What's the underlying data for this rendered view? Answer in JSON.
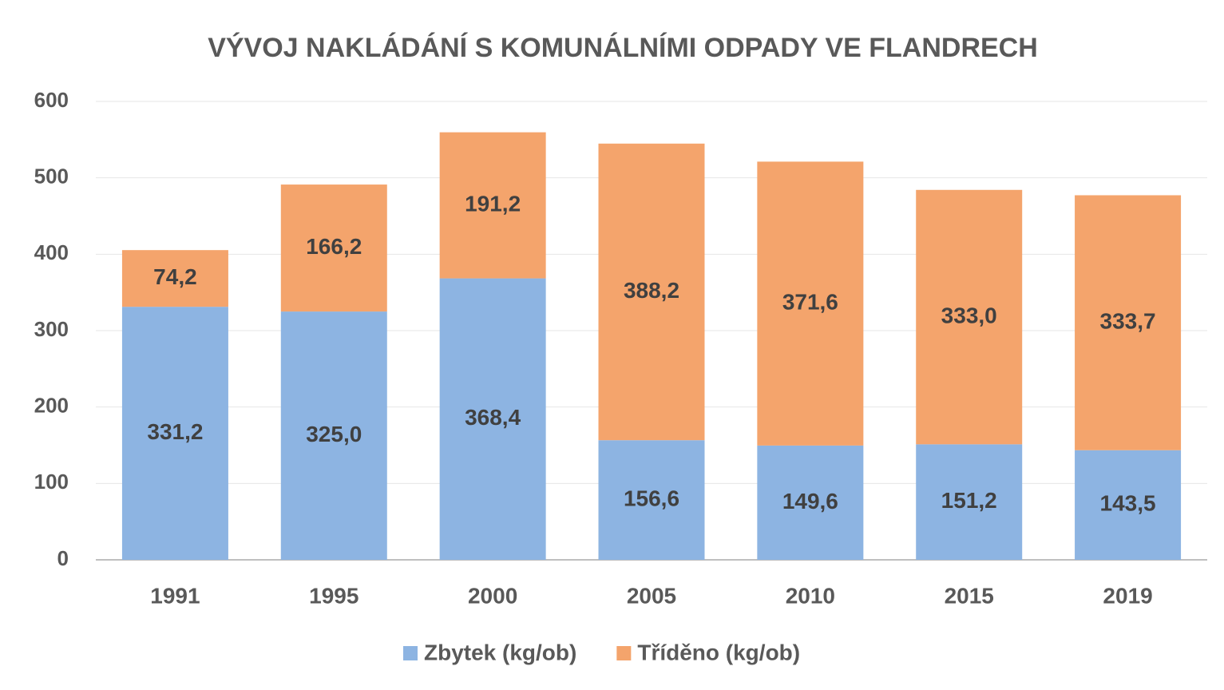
{
  "chart_data": {
    "type": "stacked_bar",
    "title": "VÝVOJ NAKLÁDÁNÍ S KOMUNÁLNÍMI ODPADY VE FLANDRECH",
    "categories": [
      "1991",
      "1995",
      "2000",
      "2005",
      "2010",
      "2015",
      "2019"
    ],
    "series": [
      {
        "name": "Zbytek (kg/ob)",
        "color": "#8db4e2",
        "values": [
          331.2,
          325.0,
          368.4,
          156.6,
          149.6,
          151.2,
          143.5
        ],
        "value_labels": [
          "331,2",
          "325,0",
          "368,4",
          "156,6",
          "149,6",
          "151,2",
          "143,5"
        ]
      },
      {
        "name": "Tříděno (kg/ob)",
        "color": "#f4a46c",
        "values": [
          74.2,
          166.2,
          191.2,
          388.2,
          371.6,
          333.0,
          333.7
        ],
        "value_labels": [
          "74,2",
          "166,2",
          "191,2",
          "388,2",
          "371,6",
          "333,0",
          "333,7"
        ]
      }
    ],
    "ylim": [
      0,
      600
    ],
    "yticks": [
      0,
      100,
      200,
      300,
      400,
      500,
      600
    ],
    "grid": true,
    "legend": "bottom"
  }
}
